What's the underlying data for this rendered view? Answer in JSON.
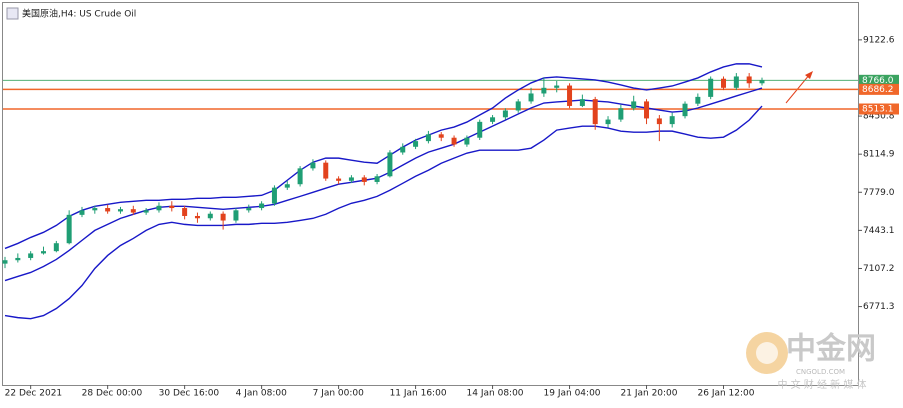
{
  "chart_data": {
    "type": "candlestick",
    "title": "美国原油,H4:  US Crude Oil",
    "up_color": "#1f9e74",
    "down_color": "#e2421d",
    "categories": [
      null,
      null,
      "22 Dec 2021",
      null,
      null,
      null,
      null,
      null,
      "28 Dec 00:00",
      null,
      null,
      null,
      null,
      null,
      "30 Dec 16:00",
      null,
      null,
      null,
      null,
      null,
      "4 Jan 08:00",
      null,
      null,
      null,
      null,
      null,
      "7 Jan 00:00",
      null,
      null,
      null,
      null,
      null,
      "11 Jan 16:00",
      null,
      null,
      null,
      null,
      null,
      "14 Jan 08:00",
      null,
      null,
      null,
      null,
      null,
      "19 Jan 04:00",
      null,
      null,
      null,
      null,
      null,
      "21 Jan 20:00",
      null,
      null,
      null,
      null,
      null,
      "26 Jan 12:00",
      null,
      null,
      null
    ],
    "open": [
      7150,
      7180,
      7200,
      7240,
      7260,
      7330,
      7580,
      7620,
      7640,
      7610,
      7630,
      7600,
      7620,
      7660,
      7640,
      7570,
      7550,
      7590,
      7530,
      7620,
      7640,
      7680,
      7820,
      7850,
      7990,
      8040,
      7900,
      7880,
      7910,
      7870,
      7920,
      8130,
      8180,
      8230,
      8290,
      8260,
      8200,
      8260,
      8400,
      8440,
      8500,
      8580,
      8650,
      8700,
      8720,
      8540,
      8600,
      8380,
      8420,
      8520,
      8580,
      8430,
      8380,
      8450,
      8560,
      8620,
      8780,
      8700,
      8800,
      8740
    ],
    "high": [
      7210,
      7240,
      7260,
      7300,
      7350,
      7620,
      7650,
      7660,
      7670,
      7650,
      7660,
      7640,
      7690,
      7700,
      7660,
      7600,
      7610,
      7610,
      7640,
      7670,
      7700,
      7840,
      7880,
      8010,
      8070,
      8060,
      7920,
      7930,
      7930,
      7940,
      8150,
      8210,
      8250,
      8320,
      8310,
      8280,
      8280,
      8420,
      8460,
      8520,
      8600,
      8700,
      8790,
      8760,
      8740,
      8640,
      8620,
      8450,
      8550,
      8630,
      8600,
      8460,
      8480,
      8580,
      8650,
      8800,
      8800,
      8830,
      8830,
      8790
    ],
    "low": [
      7110,
      7160,
      7180,
      7230,
      7250,
      7320,
      7560,
      7590,
      7590,
      7590,
      7580,
      7580,
      7600,
      7610,
      7540,
      7510,
      7530,
      7450,
      7510,
      7600,
      7620,
      7660,
      7800,
      7830,
      7970,
      7880,
      7850,
      7860,
      7840,
      7850,
      7910,
      8110,
      8160,
      8210,
      8230,
      8180,
      8180,
      8240,
      8380,
      8420,
      8480,
      8560,
      8620,
      8660,
      8520,
      8530,
      8330,
      8350,
      8400,
      8500,
      8380,
      8230,
      8350,
      8430,
      8540,
      8600,
      8680,
      8680,
      8700,
      8720
    ],
    "close": [
      7180,
      7200,
      7240,
      7260,
      7330,
      7580,
      7620,
      7640,
      7610,
      7630,
      7600,
      7620,
      7660,
      7640,
      7570,
      7550,
      7590,
      7530,
      7620,
      7640,
      7680,
      7820,
      7850,
      7990,
      8040,
      7900,
      7880,
      7910,
      7870,
      7920,
      8130,
      8180,
      8230,
      8290,
      8260,
      8200,
      8260,
      8400,
      8440,
      8500,
      8580,
      8650,
      8700,
      8720,
      8540,
      8600,
      8380,
      8420,
      8520,
      8580,
      8430,
      8380,
      8450,
      8560,
      8620,
      8780,
      8700,
      8800,
      8740,
      8766
    ],
    "bollinger": {
      "color": "#1818c8",
      "upper": [
        7284,
        7328,
        7381,
        7426,
        7487,
        7567,
        7620,
        7655,
        7673,
        7691,
        7699,
        7708,
        7708,
        7717,
        7717,
        7726,
        7726,
        7735,
        7735,
        7743,
        7752,
        7797,
        7885,
        7973,
        8044,
        8080,
        8080,
        8062,
        8044,
        8035,
        8106,
        8177,
        8239,
        8283,
        8327,
        8354,
        8398,
        8460,
        8522,
        8610,
        8681,
        8743,
        8787,
        8796,
        8787,
        8778,
        8769,
        8751,
        8725,
        8698,
        8681,
        8698,
        8716,
        8751,
        8787,
        8840,
        8884,
        8911,
        8911,
        8884
      ],
      "middle": [
        7001,
        7037,
        7072,
        7125,
        7187,
        7266,
        7355,
        7443,
        7496,
        7549,
        7585,
        7620,
        7646,
        7655,
        7655,
        7646,
        7638,
        7629,
        7638,
        7646,
        7655,
        7673,
        7708,
        7743,
        7779,
        7815,
        7850,
        7867,
        7885,
        7903,
        7956,
        8018,
        8080,
        8133,
        8168,
        8203,
        8256,
        8309,
        8362,
        8415,
        8469,
        8522,
        8566,
        8575,
        8583,
        8592,
        8583,
        8575,
        8557,
        8539,
        8522,
        8504,
        8486,
        8495,
        8522,
        8557,
        8592,
        8628,
        8663,
        8698
      ],
      "lower": [
        6692,
        6674,
        6665,
        6692,
        6754,
        6842,
        6957,
        7107,
        7222,
        7310,
        7372,
        7443,
        7496,
        7514,
        7496,
        7487,
        7487,
        7487,
        7496,
        7496,
        7505,
        7505,
        7514,
        7531,
        7549,
        7585,
        7638,
        7682,
        7708,
        7743,
        7797,
        7858,
        7920,
        7973,
        8035,
        8080,
        8124,
        8150,
        8150,
        8150,
        8150,
        8168,
        8239,
        8327,
        8345,
        8362,
        8362,
        8345,
        8318,
        8309,
        8309,
        8318,
        8318,
        8292,
        8265,
        8256,
        8265,
        8327,
        8415,
        8539
      ]
    },
    "levels": [
      {
        "value": 8766.0,
        "label": "8766.0",
        "color": "#3aa360"
      },
      {
        "value": 8686.2,
        "color": "#f0672a"
      },
      {
        "value": 8513.1,
        "color": "#f0672a"
      }
    ],
    "ylim": [
      6080,
      9430
    ],
    "yticks": [
      6771.3,
      7107.2,
      7443.1,
      {
        "value": 7779,
        "label": "7779.0"
      },
      8114.9,
      8450.8,
      9122.6
    ]
  },
  "watermark": {
    "name": "中金网",
    "site": "CNGOLD.COM",
    "slogan": "中 文 财 经 新 媒 体"
  }
}
